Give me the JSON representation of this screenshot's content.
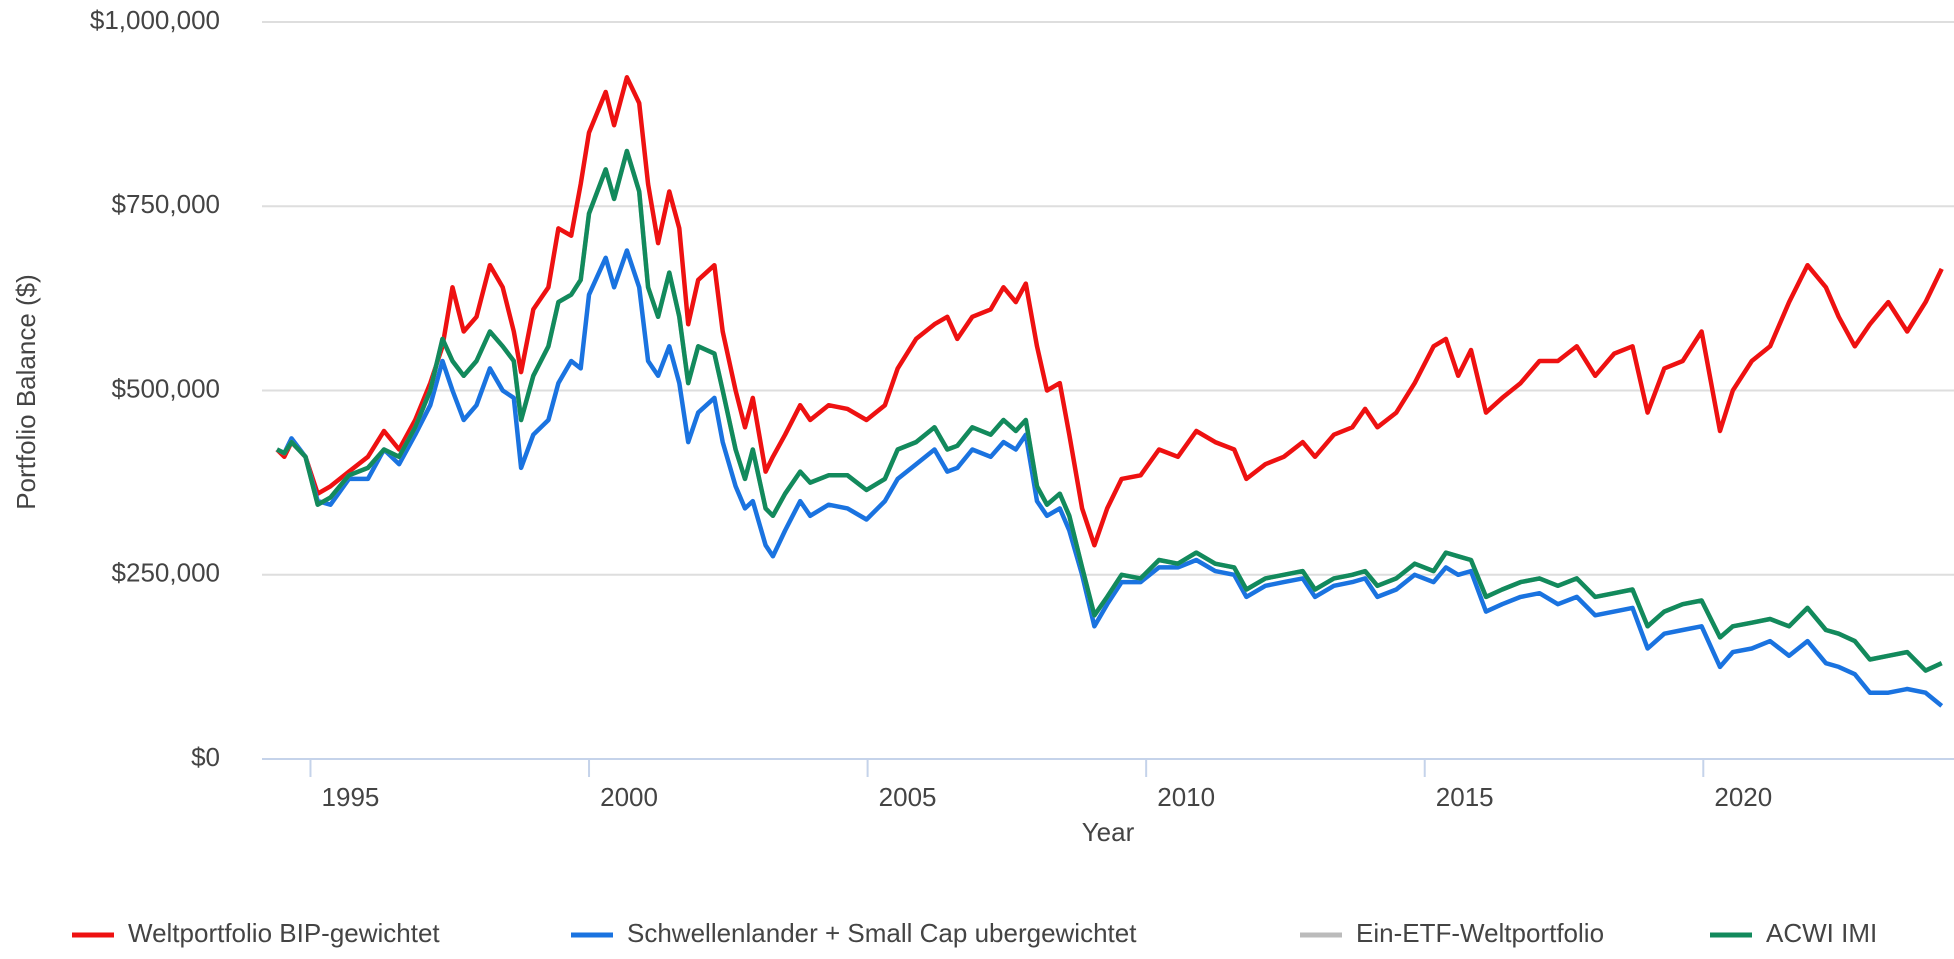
{
  "chart_data": {
    "type": "line",
    "y_label": "Portfolio Balance ($)",
    "x_label": "Year",
    "xlim": [
      1994.13,
      2024.5
    ],
    "xticks": [
      1995,
      2000,
      2005,
      2010,
      2015,
      2020
    ],
    "ylim": [
      0,
      1000000
    ],
    "yticks": [
      {
        "value": 0,
        "label": "$0"
      },
      {
        "value": 250000,
        "label": "$250,000"
      },
      {
        "value": 500000,
        "label": "$500,000"
      },
      {
        "value": 750000,
        "label": "$750,000"
      },
      {
        "value": 1000000,
        "label": "$1,000,000"
      }
    ],
    "grid": true,
    "legend": "bottom",
    "x": [
      1994.4,
      1994.53,
      1994.66,
      1994.91,
      1995.13,
      1995.36,
      1995.69,
      1996.03,
      1996.32,
      1996.59,
      1996.88,
      1997.15,
      1997.37,
      1997.55,
      1997.75,
      1997.98,
      1998.22,
      1998.45,
      1998.65,
      1998.78,
      1999.0,
      1999.27,
      1999.45,
      1999.68,
      1999.85,
      2000.0,
      2000.3,
      2000.45,
      2000.68,
      2000.9,
      2001.06,
      2001.24,
      2001.44,
      2001.62,
      2001.78,
      2001.96,
      2002.25,
      2002.4,
      2002.63,
      2002.8,
      2002.94,
      2003.17,
      2003.3,
      2003.52,
      2003.79,
      2003.97,
      2004.3,
      2004.64,
      2004.98,
      2005.31,
      2005.54,
      2005.87,
      2006.2,
      2006.43,
      2006.61,
      2006.88,
      2007.21,
      2007.44,
      2007.66,
      2007.84,
      2008.04,
      2008.22,
      2008.45,
      2008.62,
      2008.85,
      2009.07,
      2009.3,
      2009.56,
      2009.9,
      2010.23,
      2010.57,
      2010.9,
      2011.24,
      2011.58,
      2011.8,
      2012.14,
      2012.47,
      2012.81,
      2013.03,
      2013.37,
      2013.7,
      2013.93,
      2014.15,
      2014.49,
      2014.82,
      2015.16,
      2015.38,
      2015.6,
      2015.83,
      2016.1,
      2016.39,
      2016.72,
      2017.06,
      2017.39,
      2017.73,
      2018.06,
      2018.4,
      2018.73,
      2019.0,
      2019.3,
      2019.63,
      2019.97,
      2020.3,
      2020.53,
      2020.87,
      2021.2,
      2021.54,
      2021.87,
      2022.2,
      2022.43,
      2022.72,
      2022.99,
      2023.32,
      2023.66,
      2023.99,
      2024.28
    ],
    "series": [
      {
        "name": "Weltportfolio BIP-gewichtet",
        "color": "#ee1111",
        "values": [
          420000,
          410000,
          430000,
          410000,
          360000,
          370000,
          390000,
          410000,
          445000,
          420000,
          460000,
          510000,
          560000,
          640000,
          580000,
          600000,
          670000,
          640000,
          580000,
          525000,
          610000,
          640000,
          720000,
          710000,
          780000,
          850000,
          905000,
          860000,
          925000,
          890000,
          780000,
          700000,
          770000,
          720000,
          590000,
          650000,
          670000,
          580000,
          500000,
          450000,
          490000,
          390000,
          410000,
          440000,
          480000,
          460000,
          480000,
          475000,
          460000,
          480000,
          530000,
          570000,
          590000,
          600000,
          570000,
          600000,
          610000,
          640000,
          620000,
          645000,
          560000,
          500000,
          510000,
          440000,
          340000,
          290000,
          340000,
          380000,
          385000,
          420000,
          410000,
          445000,
          430000,
          420000,
          380000,
          400000,
          410000,
          430000,
          410000,
          440000,
          450000,
          475000,
          450000,
          470000,
          510000,
          560000,
          570000,
          520000,
          555000,
          470000,
          490000,
          510000,
          540000,
          540000,
          560000,
          520000,
          550000,
          560000,
          470000,
          530000,
          540000,
          580000,
          445000,
          500000,
          540000,
          560000,
          620000,
          670000,
          640000,
          600000,
          560000,
          590000,
          620000,
          580000,
          620000,
          665000
        ]
      },
      {
        "name": "Schwellenlander + Small Cap ubergewichtet",
        "color": "#1a73e0",
        "values": [
          420000,
          415000,
          435000,
          410000,
          350000,
          345000,
          380000,
          380000,
          420000,
          400000,
          440000,
          480000,
          540000,
          500000,
          460000,
          480000,
          530000,
          500000,
          490000,
          395000,
          440000,
          460000,
          510000,
          540000,
          530000,
          630000,
          680000,
          640000,
          690000,
          640000,
          540000,
          520000,
          560000,
          510000,
          430000,
          470000,
          490000,
          430000,
          370000,
          340000,
          350000,
          290000,
          275000,
          310000,
          350000,
          330000,
          345000,
          340000,
          325000,
          350000,
          380000,
          400000,
          420000,
          390000,
          395000,
          420000,
          410000,
          430000,
          420000,
          440000,
          350000,
          330000,
          340000,
          310000,
          250000,
          180000,
          210000,
          240000,
          240000,
          260000,
          260000,
          270000,
          255000,
          250000,
          220000,
          235000,
          240000,
          245000,
          220000,
          235000,
          240000,
          245000,
          220000,
          230000,
          250000,
          240000,
          260000,
          250000,
          255000,
          200000,
          210000,
          220000,
          225000,
          210000,
          220000,
          195000,
          200000,
          205000,
          150000,
          170000,
          175000,
          180000,
          125000,
          145000,
          150000,
          160000,
          140000,
          160000,
          130000,
          125000,
          115000,
          90000,
          90000,
          95000,
          90000,
          72000
        ]
      },
      {
        "name": "Ein-ETF-Weltportfolio",
        "color": "#bbbbbb",
        "values": [
          420000,
          415000,
          430000,
          410000,
          345000,
          355000,
          385000,
          395000,
          420000,
          410000,
          450000,
          500000,
          570000,
          540000,
          520000,
          540000,
          580000,
          560000,
          540000,
          460000,
          520000,
          560000,
          620000,
          630000,
          650000,
          740000,
          800000,
          760000,
          825000,
          770000,
          640000,
          600000,
          660000,
          600000,
          510000,
          560000,
          550000,
          500000,
          420000,
          380000,
          420000,
          340000,
          330000,
          360000,
          390000,
          375000,
          385000,
          385000,
          365000,
          380000,
          420000,
          430000,
          450000,
          420000,
          425000,
          450000,
          440000,
          460000,
          445000,
          460000,
          370000,
          345000,
          360000,
          330000,
          260000,
          195000,
          220000,
          250000,
          245000,
          270000,
          265000,
          280000,
          265000,
          260000,
          230000,
          245000,
          250000,
          255000,
          230000,
          245000,
          250000,
          255000,
          235000,
          245000,
          265000,
          255000,
          280000,
          275000,
          270000,
          220000,
          230000,
          240000,
          245000,
          235000,
          245000,
          220000,
          225000,
          230000,
          180000,
          200000,
          210000,
          215000,
          165000,
          180000,
          185000,
          190000,
          180000,
          205000,
          175000,
          170000,
          160000,
          135000,
          140000,
          145000,
          120000,
          130000
        ]
      },
      {
        "name": "ACWI IMI",
        "color": "#128a5c",
        "values": [
          420000,
          415000,
          430000,
          410000,
          345000,
          355000,
          385000,
          395000,
          420000,
          410000,
          450000,
          500000,
          570000,
          540000,
          520000,
          540000,
          580000,
          560000,
          540000,
          460000,
          520000,
          560000,
          620000,
          630000,
          650000,
          740000,
          800000,
          760000,
          825000,
          770000,
          640000,
          600000,
          660000,
          600000,
          510000,
          560000,
          550000,
          500000,
          420000,
          380000,
          420000,
          340000,
          330000,
          360000,
          390000,
          375000,
          385000,
          385000,
          365000,
          380000,
          420000,
          430000,
          450000,
          420000,
          425000,
          450000,
          440000,
          460000,
          445000,
          460000,
          370000,
          345000,
          360000,
          330000,
          260000,
          195000,
          220000,
          250000,
          245000,
          270000,
          265000,
          280000,
          265000,
          260000,
          230000,
          245000,
          250000,
          255000,
          230000,
          245000,
          250000,
          255000,
          235000,
          245000,
          265000,
          255000,
          280000,
          275000,
          270000,
          220000,
          230000,
          240000,
          245000,
          235000,
          245000,
          220000,
          225000,
          230000,
          180000,
          200000,
          210000,
          215000,
          165000,
          180000,
          185000,
          190000,
          180000,
          205000,
          175000,
          170000,
          160000,
          135000,
          140000,
          145000,
          120000,
          130000
        ]
      }
    ]
  }
}
